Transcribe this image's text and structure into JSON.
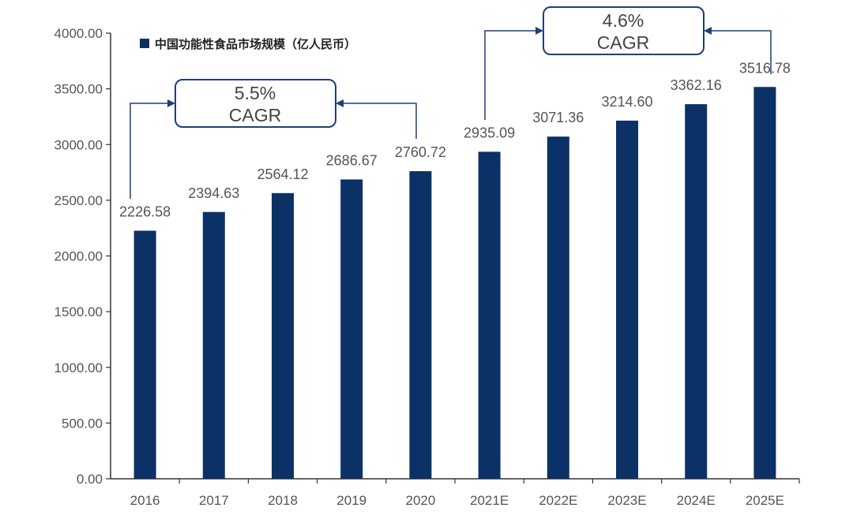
{
  "chart_data": {
    "type": "bar",
    "categories": [
      "2016",
      "2017",
      "2018",
      "2019",
      "2020",
      "2021E",
      "2022E",
      "2023E",
      "2024E",
      "2025E"
    ],
    "series": [
      {
        "name": "中国功能性食品市场规模（亿人民币）",
        "values": [
          2226.58,
          2394.63,
          2564.12,
          2686.67,
          2760.72,
          2935.09,
          3071.36,
          3214.6,
          3362.16,
          3516.78
        ],
        "color": "#0c3166"
      }
    ],
    "data_labels": [
      "2226.58",
      "2394.63",
      "2564.12",
      "2686.67",
      "2760.72",
      "2935.09",
      "3071.36",
      "3214.60",
      "3362.16",
      "3516.78"
    ],
    "y_ticks": [
      "0.00",
      "500.00",
      "1000.00",
      "1500.00",
      "2000.00",
      "2500.00",
      "3000.00",
      "3500.00",
      "4000.00"
    ],
    "ylim": [
      0,
      4000
    ],
    "title": "",
    "xlabel": "",
    "ylabel": "",
    "legend": "top-left",
    "grid": false,
    "annotations": [
      {
        "rate": "5.5%",
        "label": "CAGR",
        "from": "2016",
        "to": "2020"
      },
      {
        "rate": "4.6%",
        "label": "CAGR",
        "from": "2021E",
        "to": "2025E"
      }
    ],
    "colors": {
      "bar": "#0c3166",
      "axis": "#333333",
      "annotation": "#1f3f7a"
    }
  }
}
